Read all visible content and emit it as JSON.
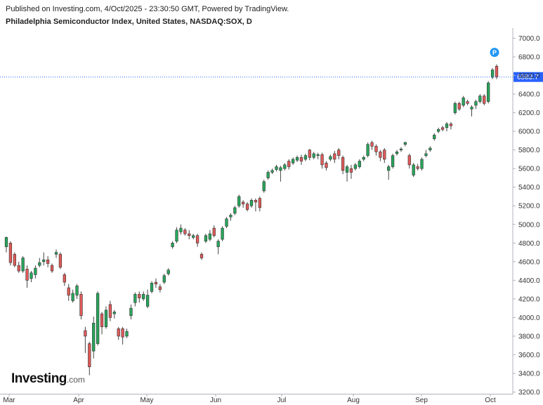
{
  "header": {
    "published": "Published on Investing.com, 4/Oct/2025 - 23:30:50 GMT, Powered by TradingView.",
    "title": "Philadelphia Semiconductor Index, United States, NASDAQ:SOX, D"
  },
  "logo": {
    "main": "Investing",
    "suffix": ".com"
  },
  "colors": {
    "up": "#26a65b",
    "down": "#e05a58",
    "wick": "#444444",
    "price_line": "#2962ff",
    "price_badge": "#2962ff",
    "marker": "#2196f3"
  },
  "chart_data": {
    "type": "candlestick",
    "ylim": [
      3200,
      7100
    ],
    "y_ticks": [
      "7000.0",
      "6800.0",
      "6600.0",
      "6400.0",
      "6200.0",
      "6000.0",
      "5800.0",
      "5600.0",
      "5400.0",
      "5200.0",
      "5000.0",
      "4800.0",
      "4600.0",
      "4400.0",
      "4200.0",
      "4000.0",
      "3800.0",
      "3600.0",
      "3400.0",
      "3200.0"
    ],
    "x_ticks": [
      "Mar",
      "Apr",
      "May",
      "Jun",
      "Jul",
      "Aug",
      "Sep",
      "Oct"
    ],
    "last_price": "6583.7",
    "marker_label": "P",
    "candles": [
      [
        4760,
        4860,
        4700,
        4870
      ],
      [
        4800,
        4590,
        4560,
        4820
      ],
      [
        4680,
        4560,
        4540,
        4700
      ],
      [
        4560,
        4500,
        4480,
        4600
      ],
      [
        4500,
        4640,
        4480,
        4660
      ],
      [
        4520,
        4400,
        4320,
        4560
      ],
      [
        4420,
        4480,
        4380,
        4500
      ],
      [
        4460,
        4530,
        4420,
        4560
      ],
      [
        4560,
        4590,
        4540,
        4640
      ],
      [
        4600,
        4620,
        4560,
        4700
      ],
      [
        4620,
        4580,
        4540,
        4660
      ],
      [
        4560,
        4500,
        4480,
        4580
      ],
      [
        4680,
        4700,
        4640,
        4730
      ],
      [
        4680,
        4540,
        4520,
        4700
      ],
      [
        4460,
        4380,
        4340,
        4480
      ],
      [
        4320,
        4240,
        4180,
        4360
      ],
      [
        4180,
        4260,
        4160,
        4300
      ],
      [
        4240,
        4340,
        4200,
        4360
      ],
      [
        4250,
        4020,
        3980,
        4280
      ],
      [
        3860,
        3800,
        3620,
        3900
      ],
      [
        3720,
        3470,
        3380,
        3740
      ],
      [
        3640,
        3940,
        3560,
        4010
      ],
      [
        3720,
        4260,
        3700,
        4280
      ],
      [
        4040,
        3900,
        3820,
        4060
      ],
      [
        3900,
        4080,
        3880,
        4120
      ],
      [
        4140,
        4000,
        3960,
        4180
      ],
      [
        4040,
        4060,
        3990,
        4080
      ],
      [
        3880,
        3800,
        3760,
        3900
      ],
      [
        3880,
        3790,
        3710,
        3900
      ],
      [
        3800,
        3850,
        3780,
        3880
      ],
      [
        4020,
        4100,
        3980,
        4140
      ],
      [
        4160,
        4250,
        4120,
        4270
      ],
      [
        4250,
        4210,
        4160,
        4280
      ],
      [
        4200,
        4250,
        4180,
        4280
      ],
      [
        4120,
        4240,
        4100,
        4300
      ],
      [
        4280,
        4370,
        4260,
        4390
      ],
      [
        4380,
        4360,
        4320,
        4420
      ],
      [
        4330,
        4300,
        4270,
        4360
      ],
      [
        4380,
        4450,
        4360,
        4470
      ],
      [
        4470,
        4510,
        4450,
        4530
      ],
      [
        4760,
        4800,
        4740,
        4820
      ],
      [
        4820,
        4940,
        4800,
        4970
      ],
      [
        4920,
        4960,
        4890,
        5000
      ],
      [
        4940,
        4900,
        4880,
        4960
      ],
      [
        4900,
        4880,
        4840,
        4940
      ],
      [
        4860,
        4880,
        4840,
        4900
      ],
      [
        4880,
        4800,
        4760,
        4900
      ],
      [
        4680,
        4640,
        4620,
        4700
      ],
      [
        4820,
        4880,
        4800,
        4900
      ],
      [
        4840,
        4900,
        4820,
        4940
      ],
      [
        4960,
        4880,
        4860,
        4990
      ],
      [
        4760,
        4820,
        4680,
        4840
      ],
      [
        4840,
        4960,
        4820,
        4980
      ],
      [
        4980,
        5060,
        4960,
        5080
      ],
      [
        5080,
        5100,
        5040,
        5120
      ],
      [
        5120,
        5180,
        5100,
        5200
      ],
      [
        5200,
        5300,
        5180,
        5320
      ],
      [
        5240,
        5220,
        5180,
        5260
      ],
      [
        5220,
        5160,
        5140,
        5240
      ],
      [
        5200,
        5260,
        5180,
        5280
      ],
      [
        5260,
        5240,
        5140,
        5280
      ],
      [
        5280,
        5180,
        5140,
        5300
      ],
      [
        5360,
        5460,
        5340,
        5480
      ],
      [
        5500,
        5560,
        5480,
        5580
      ],
      [
        5560,
        5580,
        5540,
        5600
      ],
      [
        5590,
        5620,
        5570,
        5640
      ],
      [
        5580,
        5610,
        5460,
        5630
      ],
      [
        5600,
        5640,
        5580,
        5660
      ],
      [
        5680,
        5620,
        5590,
        5700
      ],
      [
        5660,
        5700,
        5640,
        5720
      ],
      [
        5690,
        5720,
        5670,
        5740
      ],
      [
        5720,
        5680,
        5640,
        5750
      ],
      [
        5700,
        5740,
        5680,
        5760
      ],
      [
        5800,
        5720,
        5690,
        5810
      ],
      [
        5720,
        5760,
        5700,
        5780
      ],
      [
        5740,
        5750,
        5700,
        5770
      ],
      [
        5750,
        5640,
        5600,
        5770
      ],
      [
        5660,
        5610,
        5580,
        5680
      ],
      [
        5700,
        5730,
        5680,
        5750
      ],
      [
        5760,
        5700,
        5660,
        5790
      ],
      [
        5800,
        5740,
        5700,
        5820
      ],
      [
        5720,
        5580,
        5540,
        5740
      ],
      [
        5560,
        5620,
        5460,
        5640
      ],
      [
        5600,
        5560,
        5490,
        5640
      ],
      [
        5600,
        5640,
        5580,
        5660
      ],
      [
        5620,
        5680,
        5600,
        5700
      ],
      [
        5700,
        5720,
        5680,
        5740
      ],
      [
        5740,
        5860,
        5720,
        5880
      ],
      [
        5880,
        5840,
        5800,
        5900
      ],
      [
        5840,
        5780,
        5740,
        5860
      ],
      [
        5780,
        5720,
        5680,
        5800
      ],
      [
        5800,
        5700,
        5660,
        5820
      ],
      [
        5580,
        5620,
        5480,
        5640
      ],
      [
        5620,
        5740,
        5600,
        5760
      ],
      [
        5760,
        5780,
        5740,
        5800
      ],
      [
        5800,
        5810,
        5780,
        5830
      ],
      [
        5860,
        5880,
        5840,
        5890
      ],
      [
        5740,
        5640,
        5600,
        5760
      ],
      [
        5530,
        5640,
        5510,
        5660
      ],
      [
        5620,
        5600,
        5580,
        5650
      ],
      [
        5600,
        5700,
        5580,
        5720
      ],
      [
        5740,
        5760,
        5720,
        5800
      ],
      [
        5800,
        5820,
        5780,
        5840
      ],
      [
        5920,
        5960,
        5900,
        5980
      ],
      [
        6000,
        6020,
        5980,
        6040
      ],
      [
        6040,
        6020,
        6000,
        6060
      ],
      [
        6040,
        6080,
        6000,
        6100
      ],
      [
        6080,
        6060,
        6020,
        6100
      ],
      [
        6200,
        6300,
        6180,
        6320
      ],
      [
        6300,
        6240,
        6220,
        6320
      ],
      [
        6280,
        6360,
        6260,
        6380
      ],
      [
        6320,
        6300,
        6280,
        6340
      ],
      [
        6240,
        6260,
        6160,
        6280
      ],
      [
        6280,
        6320,
        6240,
        6340
      ],
      [
        6320,
        6380,
        6300,
        6400
      ],
      [
        6380,
        6300,
        6280,
        6400
      ],
      [
        6320,
        6520,
        6300,
        6540
      ],
      [
        6580,
        6660,
        6560,
        6680
      ],
      [
        6700,
        6583.7,
        6560,
        6720
      ]
    ]
  }
}
